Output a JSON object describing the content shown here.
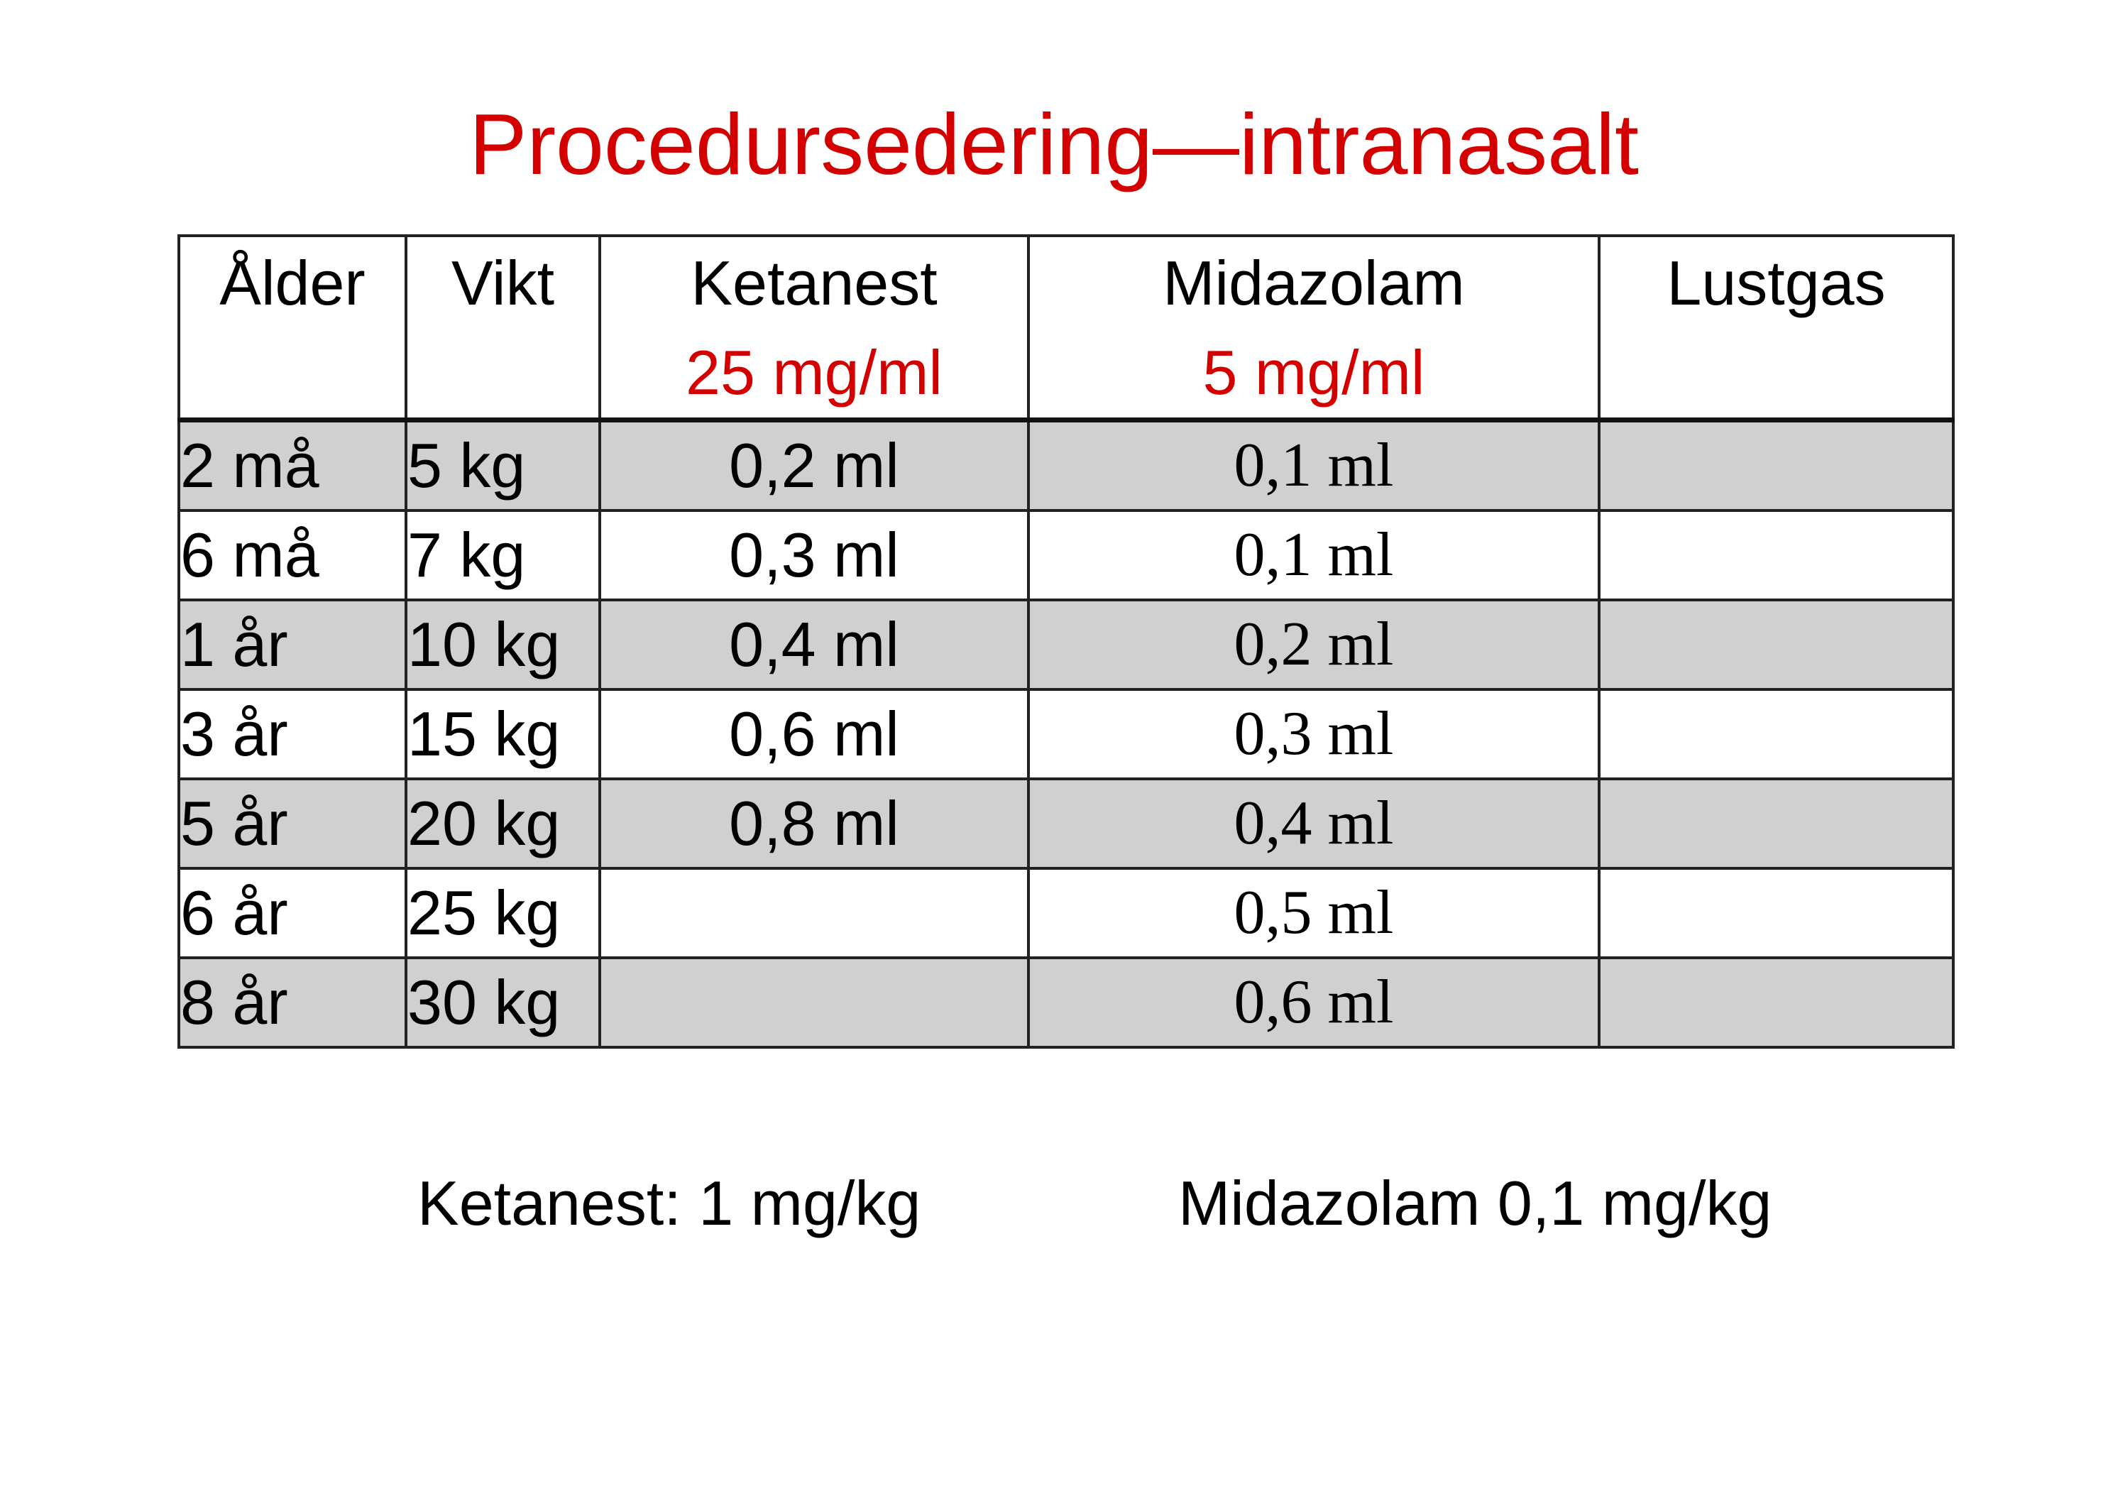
{
  "title": "Procedursedering—intranasalt",
  "table": {
    "headers": {
      "age": "Ålder",
      "weight": "Vikt",
      "ketanest": "Ketanest",
      "ketanest_conc": "25 mg/ml",
      "midazolam": "Midazolam",
      "midazolam_conc": "5 mg/ml",
      "lustgas": "Lustgas"
    },
    "rows": [
      {
        "age": "2 må",
        "weight": "5 kg",
        "ketanest": "0,2 ml",
        "midazolam": "0,1 ml",
        "lustgas": ""
      },
      {
        "age": "6 må",
        "weight": "7 kg",
        "ketanest": "0,3 ml",
        "midazolam": "0,1 ml",
        "lustgas": ""
      },
      {
        "age": "1 år",
        "weight": "10 kg",
        "ketanest": "0,4 ml",
        "midazolam": "0,2 ml",
        "lustgas": ""
      },
      {
        "age": "3 år",
        "weight": "15 kg",
        "ketanest": "0,6 ml",
        "midazolam": "0,3 ml",
        "lustgas": ""
      },
      {
        "age": "5 år",
        "weight": "20 kg",
        "ketanest": "0,8 ml",
        "midazolam": "0,4 ml",
        "lustgas": ""
      },
      {
        "age": "6 år",
        "weight": "25 kg",
        "ketanest": "",
        "midazolam": "0,5 ml",
        "lustgas": ""
      },
      {
        "age": "8 år",
        "weight": "30 kg",
        "ketanest": "",
        "midazolam": "0,6 ml",
        "lustgas": ""
      }
    ]
  },
  "footer": {
    "ketanest_dose": "Ketanest: 1 mg/kg",
    "midazolam_dose": "Midazolam 0,1 mg/kg"
  },
  "colors": {
    "accent_red": "#d40000",
    "row_shade": "#d0d0d0",
    "border": "#222222"
  }
}
